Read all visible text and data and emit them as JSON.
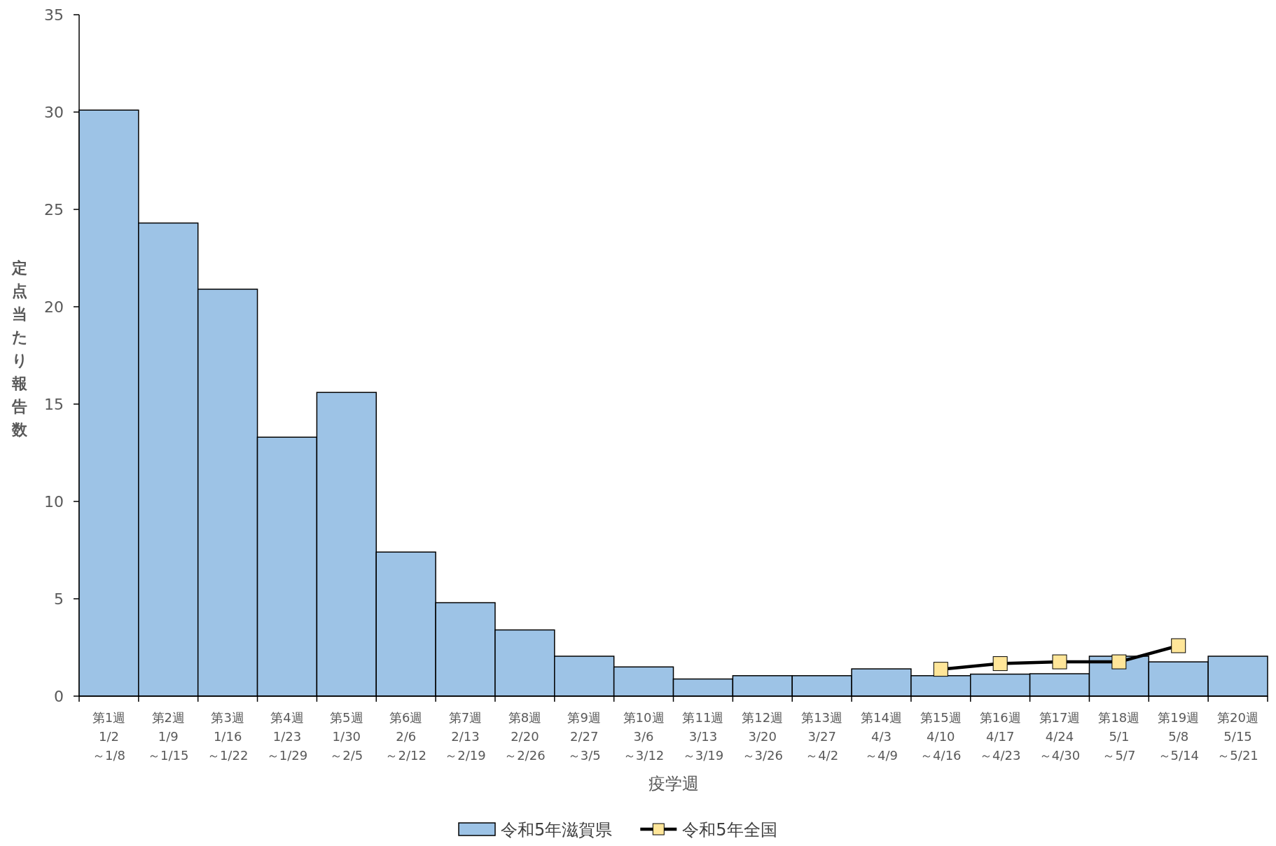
{
  "chart_data": {
    "type": "bar",
    "xlabel": "疫学週",
    "ylabel": "定点当たり報告数",
    "categories": [
      "第1週\n1/2\n～1/8",
      "第2週\n1/9\n～1/15",
      "第3週\n1/16\n～1/22",
      "第4週\n1/23\n～1/29",
      "第5週\n1/30\n～2/5",
      "第6週\n2/6\n～2/12",
      "第7週\n2/13\n～2/19",
      "第8週\n2/20\n～2/26",
      "第9週\n2/27\n～3/5",
      "第10週\n3/6\n～3/12",
      "第11週\n3/13\n～3/19",
      "第12週\n3/20\n～3/26",
      "第13週\n3/27\n～4/2",
      "第14週\n4/3\n～4/9",
      "第15週\n4/10\n～4/16",
      "第16週\n4/17\n～4/23",
      "第17週\n4/24\n～4/30",
      "第18週\n5/1\n～5/7",
      "第19週\n5/8\n～5/14",
      "第20週\n5/15\n～5/21"
    ],
    "series": [
      {
        "name": "令和5年滋賀県",
        "color": "#9dc3e6",
        "values": [
          30.1,
          24.3,
          20.9,
          13.3,
          15.6,
          7.4,
          4.8,
          3.4,
          2.05,
          1.5,
          0.88,
          1.05,
          1.05,
          1.4,
          1.05,
          1.13,
          1.15,
          2.05,
          1.76,
          2.05
        ]
      },
      {
        "name": "令和5年全国",
        "type": "line",
        "color": "#000000",
        "marker": "square",
        "values": [
          null,
          null,
          null,
          null,
          null,
          null,
          null,
          null,
          null,
          null,
          null,
          null,
          null,
          null,
          1.38,
          1.67,
          1.76,
          1.76,
          2.59,
          null
        ]
      }
    ],
    "ylim": [
      0,
      35
    ],
    "yticks": [
      0,
      5,
      10,
      15,
      20,
      25,
      30,
      35
    ],
    "legend": "bottom"
  }
}
